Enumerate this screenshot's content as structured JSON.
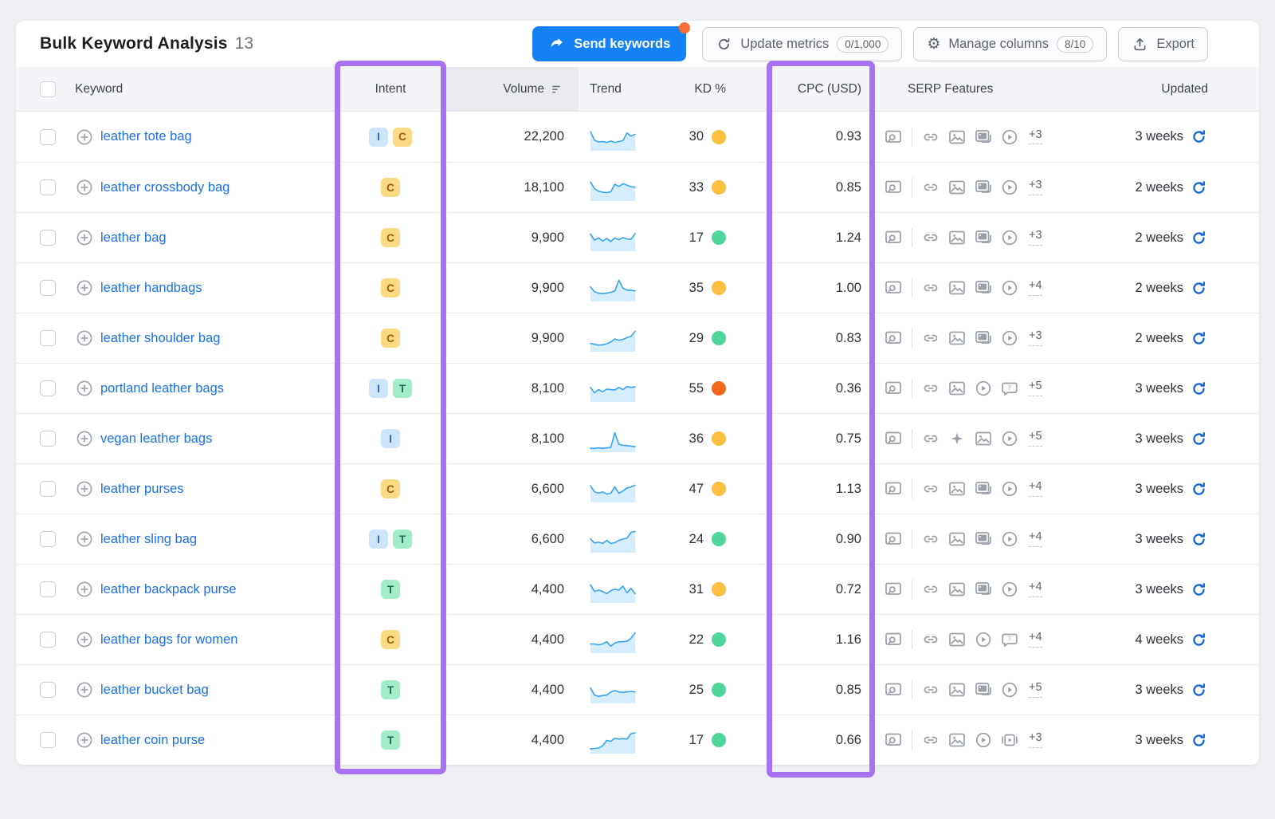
{
  "page": {
    "title": "Bulk Keyword Analysis",
    "count": "13"
  },
  "toolbar": {
    "send_keywords": "Send keywords",
    "update_metrics": "Update metrics",
    "update_metrics_quota": "0/1,000",
    "manage_columns": "Manage columns",
    "manage_columns_quota": "8/10",
    "export": "Export"
  },
  "columns": {
    "keyword": "Keyword",
    "intent": "Intent",
    "volume": "Volume",
    "trend": "Trend",
    "kd": "KD %",
    "cpc": "CPC (USD)",
    "serp": "SERP Features",
    "updated": "Updated"
  },
  "colors": {
    "highlight_purple": "#a873f2",
    "primary_blue": "#1581f7",
    "notification_orange": "#fa6e33",
    "link_blue": "#1b70e8",
    "sparkline_line": "#38a3ef",
    "sparkline_fill": "#d6eefb",
    "refresh_blue": "#1565d8",
    "kd_easy": "#4fd69d",
    "kd_possible": "#fdbf3f",
    "kd_difficult": "#f2681e"
  },
  "intent_badges": {
    "I": {
      "label": "I",
      "bg": "#cde4fb",
      "fg": "#2b67c6"
    },
    "C": {
      "label": "C",
      "bg": "#fbda84",
      "fg": "#9f5c14"
    },
    "T": {
      "label": "T",
      "bg": "#a2ecc9",
      "fg": "#16705a"
    }
  },
  "rows": [
    {
      "keyword": "leather tote bag",
      "intents": [
        "I",
        "C"
      ],
      "volume": "22,200",
      "trend": [
        78,
        40,
        32,
        34,
        30,
        36,
        30,
        34,
        38,
        72,
        58,
        66
      ],
      "kd": "30",
      "kd_level": "kd_possible",
      "cpc": "0.93",
      "serp": [
        "preview",
        "link",
        "image",
        "image-pack",
        "play"
      ],
      "serp_more": "+3",
      "updated": "3 weeks"
    },
    {
      "keyword": "leather crossbody bag",
      "intents": [
        "C"
      ],
      "volume": "18,100",
      "trend": [
        78,
        48,
        36,
        32,
        30,
        34,
        68,
        58,
        70,
        64,
        56,
        55
      ],
      "kd": "33",
      "kd_level": "kd_possible",
      "cpc": "0.85",
      "serp": [
        "preview",
        "link",
        "image",
        "image-pack",
        "play"
      ],
      "serp_more": "+3",
      "updated": "2 weeks"
    },
    {
      "keyword": "leather bag",
      "intents": [
        "C"
      ],
      "volume": "9,900",
      "trend": [
        70,
        42,
        52,
        38,
        50,
        36,
        52,
        44,
        54,
        48,
        46,
        72
      ],
      "kd": "17",
      "kd_level": "kd_easy",
      "cpc": "1.24",
      "serp": [
        "preview",
        "link",
        "image",
        "image-pack",
        "play"
      ],
      "serp_more": "+3",
      "updated": "2 weeks"
    },
    {
      "keyword": "leather handbags",
      "intents": [
        "C"
      ],
      "volume": "9,900",
      "trend": [
        58,
        36,
        30,
        28,
        30,
        34,
        40,
        88,
        52,
        44,
        42,
        40
      ],
      "kd": "35",
      "kd_level": "kd_possible",
      "cpc": "1.00",
      "serp": [
        "preview",
        "link",
        "image",
        "image-pack",
        "play"
      ],
      "serp_more": "+4",
      "updated": "2 weeks"
    },
    {
      "keyword": "leather shoulder bag",
      "intents": [
        "C"
      ],
      "volume": "9,900",
      "trend": [
        30,
        26,
        22,
        24,
        28,
        36,
        50,
        44,
        48,
        56,
        62,
        84
      ],
      "kd": "29",
      "kd_level": "kd_easy",
      "cpc": "0.83",
      "serp": [
        "preview",
        "link",
        "image",
        "image-pack",
        "play"
      ],
      "serp_more": "+3",
      "updated": "2 weeks"
    },
    {
      "keyword": "portland leather bags",
      "intents": [
        "I",
        "T"
      ],
      "volume": "8,100",
      "trend": [
        58,
        34,
        48,
        38,
        50,
        48,
        46,
        58,
        48,
        62,
        58,
        60
      ],
      "kd": "55",
      "kd_level": "kd_difficult",
      "cpc": "0.36",
      "serp": [
        "preview",
        "link",
        "image",
        "play",
        "question"
      ],
      "serp_more": "+5",
      "updated": "3 weeks"
    },
    {
      "keyword": "vegan leather bags",
      "intents": [
        "I"
      ],
      "volume": "8,100",
      "trend": [
        10,
        10,
        12,
        10,
        12,
        14,
        80,
        28,
        24,
        22,
        20,
        18
      ],
      "kd": "36",
      "kd_level": "kd_possible",
      "cpc": "0.75",
      "serp": [
        "preview",
        "link",
        "ai-overview",
        "image",
        "play"
      ],
      "serp_more": "+5",
      "updated": "3 weeks"
    },
    {
      "keyword": "leather purses",
      "intents": [
        "C"
      ],
      "volume": "6,600",
      "trend": [
        68,
        40,
        34,
        40,
        30,
        34,
        62,
        34,
        44,
        58,
        62,
        70
      ],
      "kd": "47",
      "kd_level": "kd_possible",
      "cpc": "1.13",
      "serp": [
        "preview",
        "link",
        "image",
        "image-pack",
        "play"
      ],
      "serp_more": "+4",
      "updated": "3 weeks"
    },
    {
      "keyword": "leather sling bag",
      "intents": [
        "I",
        "T"
      ],
      "volume": "6,600",
      "trend": [
        54,
        36,
        40,
        34,
        48,
        34,
        38,
        48,
        54,
        58,
        84,
        88
      ],
      "kd": "24",
      "kd_level": "kd_easy",
      "cpc": "0.90",
      "serp": [
        "preview",
        "link",
        "image",
        "image-pack",
        "play"
      ],
      "serp_more": "+4",
      "updated": "3 weeks"
    },
    {
      "keyword": "leather backpack purse",
      "intents": [
        "T"
      ],
      "volume": "4,400",
      "trend": [
        74,
        44,
        50,
        44,
        34,
        48,
        54,
        50,
        68,
        38,
        58,
        34
      ],
      "kd": "31",
      "kd_level": "kd_possible",
      "cpc": "0.72",
      "serp": [
        "preview",
        "link",
        "image",
        "image-pack",
        "play"
      ],
      "serp_more": "+4",
      "updated": "3 weeks"
    },
    {
      "keyword": "leather bags for women",
      "intents": [
        "C"
      ],
      "volume": "4,400",
      "trend": [
        34,
        34,
        30,
        34,
        44,
        24,
        38,
        44,
        44,
        46,
        60,
        84
      ],
      "kd": "22",
      "kd_level": "kd_easy",
      "cpc": "1.16",
      "serp": [
        "preview",
        "link",
        "image",
        "play",
        "question"
      ],
      "serp_more": "+4",
      "updated": "4 weeks"
    },
    {
      "keyword": "leather bucket bag",
      "intents": [
        "T"
      ],
      "volume": "4,400",
      "trend": [
        62,
        30,
        24,
        28,
        30,
        44,
        50,
        44,
        42,
        44,
        46,
        44
      ],
      "kd": "25",
      "kd_level": "kd_easy",
      "cpc": "0.85",
      "serp": [
        "preview",
        "link",
        "image",
        "image-pack",
        "play"
      ],
      "serp_more": "+5",
      "updated": "3 weeks"
    },
    {
      "keyword": "leather coin purse",
      "intents": [
        "T"
      ],
      "volume": "4,400",
      "trend": [
        14,
        16,
        18,
        28,
        52,
        48,
        62,
        58,
        60,
        58,
        82,
        86
      ],
      "kd": "17",
      "kd_level": "kd_easy",
      "cpc": "0.66",
      "serp": [
        "preview",
        "link",
        "image",
        "play",
        "video-carousel"
      ],
      "serp_more": "+3",
      "updated": "3 weeks"
    }
  ]
}
